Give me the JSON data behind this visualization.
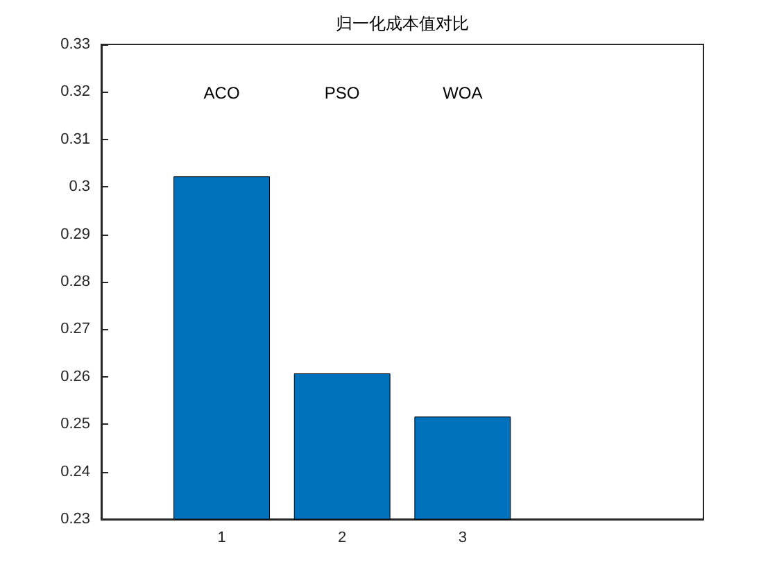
{
  "chart_data": {
    "type": "bar",
    "title": "归一化成本值对比",
    "x": [
      1,
      2,
      3
    ],
    "values": [
      0.3022,
      0.2607,
      0.2516
    ],
    "color": "#0072bd",
    "xlim": [
      0,
      5
    ],
    "xticks": [
      1,
      2,
      3
    ],
    "ylim": [
      0.23,
      0.33
    ],
    "yticks": [
      0.23,
      0.24,
      0.25,
      0.26,
      0.27,
      0.28,
      0.29,
      0.3,
      0.31,
      0.32,
      0.33
    ],
    "grid": false,
    "annotations": [
      "ACO",
      "PSO",
      "WOA"
    ]
  }
}
